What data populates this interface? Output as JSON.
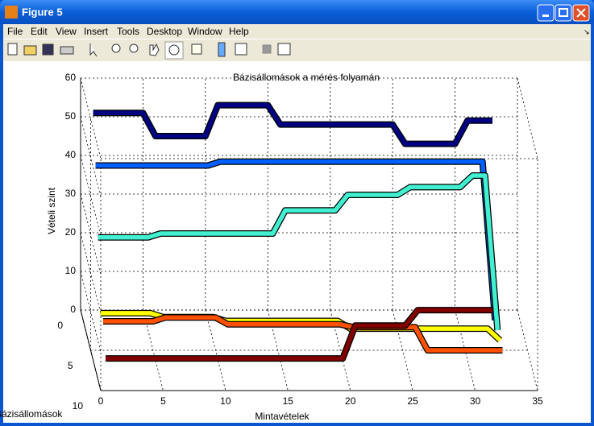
{
  "window": {
    "title": "Figure 5",
    "menu": [
      "File",
      "Edit",
      "View",
      "Insert",
      "Tools",
      "Desktop",
      "Window",
      "Help"
    ]
  },
  "chart_data": {
    "type": "ribbon3d",
    "title": "Bázisállomások a mérés folyamán",
    "xlabel": "Mintavételek",
    "ylabel": "Vételi szint",
    "zlabel": "Bázisállomások",
    "x": [
      1,
      2,
      3,
      4,
      5,
      6,
      7,
      8,
      9,
      10,
      11,
      12,
      13,
      14,
      15,
      16,
      17,
      18,
      19,
      20,
      21,
      22,
      23,
      24,
      25,
      26,
      27,
      28,
      29,
      30,
      31,
      32,
      33
    ],
    "xlim": [
      0,
      35
    ],
    "xticks": [
      0,
      5,
      10,
      15,
      20,
      25,
      30,
      35
    ],
    "ylim": [
      0,
      60
    ],
    "yticks": [
      0,
      10,
      20,
      30,
      40,
      50,
      60
    ],
    "zlim": [
      0,
      10
    ],
    "zticks": [
      0,
      5,
      10
    ],
    "grid": true,
    "series": [
      {
        "color": "#000080",
        "values": [
          51,
          51,
          51,
          51,
          51,
          45,
          45,
          45,
          45,
          45,
          53,
          53,
          53,
          53,
          53,
          48,
          48,
          48,
          48,
          48,
          48,
          48,
          48,
          48,
          48,
          43,
          43,
          43,
          43,
          43,
          49,
          49,
          49
        ]
      },
      {
        "color": "#0060ff",
        "values": [
          40,
          40,
          40,
          40,
          40,
          40,
          40,
          40,
          40,
          40,
          41,
          41,
          41,
          41,
          41,
          41,
          41,
          41,
          41,
          41,
          41,
          41,
          41,
          41,
          41,
          41,
          41,
          41,
          41,
          41,
          41,
          41,
          0
        ]
      },
      {
        "color": "#40f0d0",
        "values": [
          24,
          24,
          24,
          24,
          24,
          25,
          25,
          25,
          25,
          25,
          25,
          25,
          25,
          25,
          25,
          31,
          31,
          31,
          31,
          31,
          35,
          35,
          35,
          35,
          35,
          37,
          37,
          37,
          37,
          37,
          40,
          40,
          0
        ]
      },
      {
        "color": "#ffff00",
        "values": [
          7,
          7,
          7,
          7,
          7,
          6,
          6,
          6,
          6,
          6,
          5,
          5,
          5,
          5,
          5,
          5,
          5,
          5,
          5,
          5,
          3,
          3,
          3,
          3,
          3,
          3,
          3,
          3,
          3,
          3,
          3,
          3,
          0
        ]
      },
      {
        "color": "#ff5000",
        "values": [
          7.5,
          7.5,
          7.5,
          7.5,
          7.5,
          8.5,
          8.5,
          8.5,
          8.5,
          8.5,
          6.7,
          6.7,
          6.7,
          6.7,
          6.7,
          6.7,
          6.7,
          6.7,
          6.7,
          6.7,
          6,
          6,
          6,
          6,
          6,
          6,
          0,
          0,
          0,
          0,
          0,
          0,
          0
        ]
      },
      {
        "color": "#800000",
        "values": [
          0.5,
          0.5,
          0.5,
          0.5,
          0.5,
          0.5,
          0.5,
          0.5,
          0.5,
          0.5,
          0.5,
          0.5,
          0.5,
          0.5,
          0.5,
          0.5,
          0.5,
          0.5,
          0.5,
          0.5,
          9,
          9,
          9,
          9,
          9,
          13,
          13,
          13,
          13,
          13,
          13,
          13,
          null
        ]
      }
    ]
  }
}
